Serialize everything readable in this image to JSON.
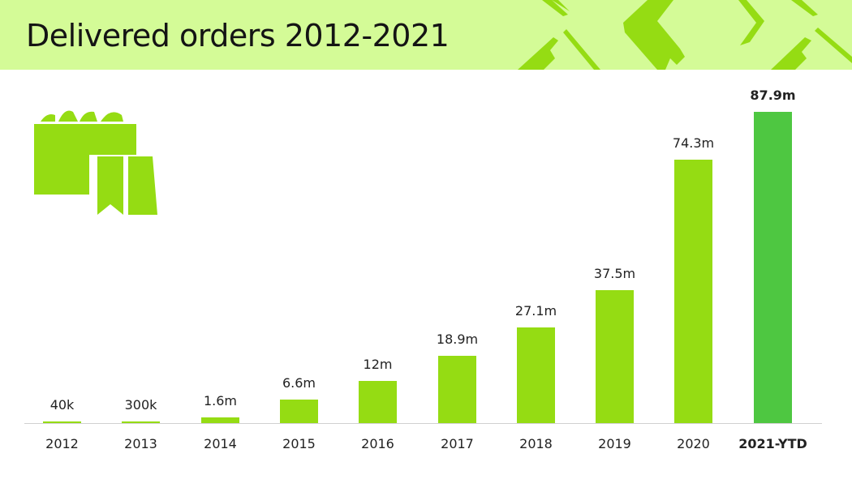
{
  "header": {
    "title": "Delivered orders 2012-2021"
  },
  "colors": {
    "header_bg": "#d4fb97",
    "bar": "#95dc13",
    "bar_highlight": "#4ec741",
    "deco": "#95dc13"
  },
  "chart_data": {
    "type": "bar",
    "title": "Delivered orders 2012-2021",
    "xlabel": "",
    "ylabel": "",
    "categories": [
      "2012",
      "2013",
      "2014",
      "2015",
      "2016",
      "2017",
      "2018",
      "2019",
      "2020",
      "2021-YTD"
    ],
    "values": [
      0.04,
      0.3,
      1.6,
      6.6,
      12,
      18.9,
      27.1,
      37.5,
      74.3,
      87.9
    ],
    "value_labels": [
      "40k",
      "300k",
      "1.6m",
      "6.6m",
      "12m",
      "18.9m",
      "27.1m",
      "37.5m",
      "74.3m",
      "87.9m"
    ],
    "unit": "million orders",
    "highlight_index": 9,
    "ylim": [
      0,
      87.9
    ],
    "grid": false,
    "legend": null
  },
  "icons": {
    "logo": "shopping-bags-icon"
  }
}
